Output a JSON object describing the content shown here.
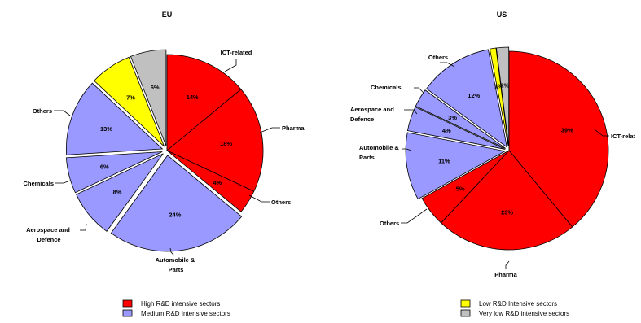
{
  "chart_data": [
    {
      "type": "pie",
      "title": "EU",
      "slices": [
        {
          "label": "ICT-related",
          "value": 14,
          "pct_label": "14%",
          "group": "high"
        },
        {
          "label": "Pharma",
          "value": 18,
          "pct_label": "18%",
          "group": "high"
        },
        {
          "label": "Others",
          "value": 4,
          "pct_label": "4%",
          "group": "high"
        },
        {
          "label": "Automobile & Parts",
          "value": 24,
          "pct_label": "24%",
          "group": "medium"
        },
        {
          "label": "Aerospace and Defence",
          "value": 8,
          "pct_label": "8%",
          "group": "medium"
        },
        {
          "label": "Chemicals",
          "value": 6,
          "pct_label": "6%",
          "group": "medium"
        },
        {
          "label": "Others",
          "value": 13,
          "pct_label": "13%",
          "group": "medium"
        },
        {
          "label": "",
          "value": 7,
          "pct_label": "7%",
          "group": "low"
        },
        {
          "label": "",
          "value": 6,
          "pct_label": "6%",
          "group": "verylow"
        }
      ]
    },
    {
      "type": "pie",
      "title": "US",
      "slices": [
        {
          "label": "ICT-relat",
          "value": 39,
          "pct_label": "39%",
          "group": "high"
        },
        {
          "label": "Pharma",
          "value": 23,
          "pct_label": "23%",
          "group": "high"
        },
        {
          "label": "Others",
          "value": 5,
          "pct_label": "5%",
          "group": "high"
        },
        {
          "label": "Automobile & Parts",
          "value": 11,
          "pct_label": "11%",
          "group": "medium"
        },
        {
          "label": "Aerospace and Defence",
          "value": 4,
          "pct_label": "4%",
          "group": "medium"
        },
        {
          "label": "Chemicals",
          "value": 3,
          "pct_label": "3%",
          "group": "medium"
        },
        {
          "label": "Others",
          "value": 12,
          "pct_label": "12%",
          "group": "medium"
        },
        {
          "label": "",
          "value": 1,
          "pct_label": "1%",
          "group": "low"
        },
        {
          "label": "",
          "value": 2,
          "pct_label": "2%",
          "group": "verylow"
        }
      ]
    }
  ],
  "groups": {
    "high": {
      "name": "High R&D intensive sectors",
      "color": "#ff0000"
    },
    "medium": {
      "name": "Medium R&D Intensive sectors",
      "color": "#9999ff"
    },
    "low": {
      "name": "Low R&D Intensive sectors",
      "color": "#ffff00"
    },
    "verylow": {
      "name": "Very low R&D intensive sectors",
      "color": "#c0c0c0"
    }
  }
}
